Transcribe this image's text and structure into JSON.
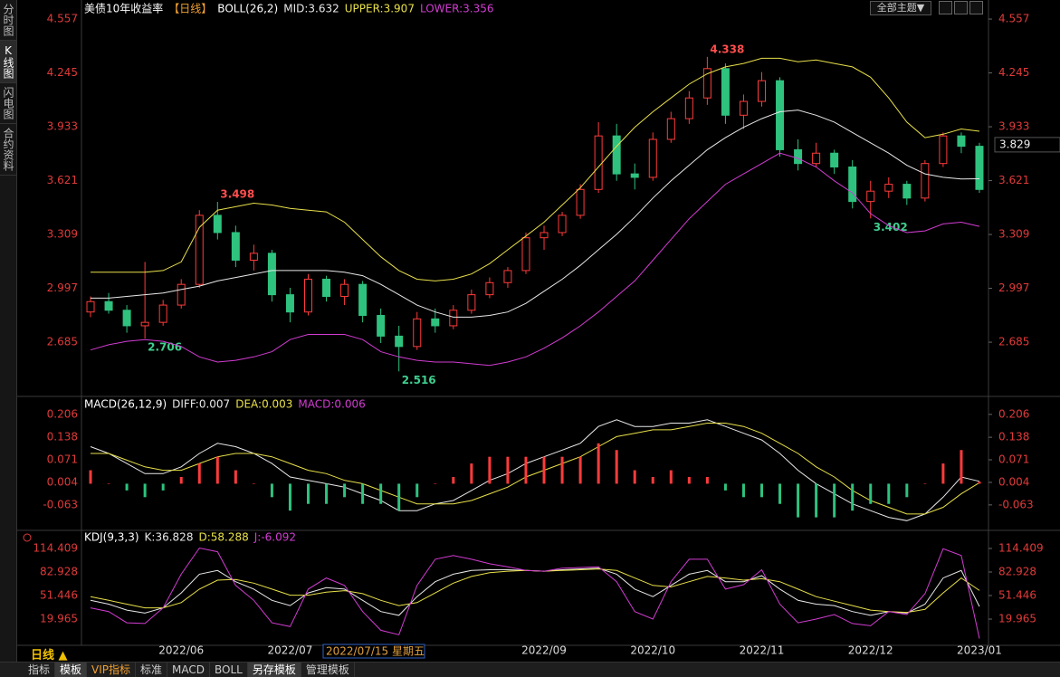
{
  "toolbar": {
    "theme_menu": "全部主题▼"
  },
  "sidebar": [
    "分时图",
    "K线图",
    "闪电图",
    "合约资料"
  ],
  "chart_data": [
    {
      "type": "candlestick",
      "title": "美债10年收益率",
      "period": "【日线】",
      "indicator": "BOLL(26,2)",
      "categories": [
        null,
        null,
        null,
        null,
        null,
        "2022/06",
        null,
        null,
        null,
        null,
        null,
        "2022/07",
        null,
        null,
        null,
        null,
        null,
        null,
        null,
        null,
        null,
        null,
        null,
        null,
        null,
        "2022/09",
        null,
        null,
        null,
        null,
        null,
        "2022/10",
        null,
        null,
        null,
        null,
        null,
        "2022/11",
        null,
        null,
        null,
        null,
        null,
        "2022/12",
        null,
        null,
        null,
        null,
        null,
        "2023/01"
      ],
      "open": [
        2.86,
        2.92,
        2.87,
        2.78,
        2.8,
        2.9,
        3.02,
        3.42,
        3.32,
        3.16,
        3.2,
        2.96,
        2.86,
        3.05,
        2.95,
        3.02,
        2.84,
        2.72,
        2.66,
        2.82,
        2.78,
        2.87,
        2.96,
        3.03,
        3.1,
        3.29,
        3.32,
        3.42,
        3.57,
        3.88,
        3.66,
        3.64,
        3.86,
        3.98,
        4.1,
        4.27,
        4.0,
        4.08,
        4.2,
        3.8,
        3.72,
        3.78,
        3.7,
        3.5,
        3.56,
        3.6,
        3.52,
        3.72,
        3.88,
        3.82
      ],
      "high": [
        2.95,
        2.97,
        2.9,
        3.15,
        2.93,
        3.05,
        3.45,
        3.498,
        3.36,
        3.25,
        3.22,
        3.0,
        3.08,
        3.07,
        3.05,
        3.04,
        2.88,
        2.78,
        2.86,
        2.88,
        2.9,
        2.99,
        3.06,
        3.12,
        3.32,
        3.36,
        3.44,
        3.6,
        3.96,
        3.95,
        3.72,
        3.9,
        4.02,
        4.14,
        4.338,
        4.3,
        4.12,
        4.25,
        4.22,
        3.86,
        3.84,
        3.8,
        3.74,
        3.62,
        3.64,
        3.62,
        3.74,
        3.9,
        3.9,
        3.84
      ],
      "low": [
        2.83,
        2.85,
        2.74,
        2.706,
        2.78,
        2.88,
        3.0,
        3.28,
        3.12,
        3.1,
        2.92,
        2.8,
        2.84,
        2.92,
        2.9,
        2.8,
        2.68,
        2.516,
        2.64,
        2.74,
        2.76,
        2.85,
        2.94,
        3.0,
        3.08,
        3.22,
        3.3,
        3.4,
        3.55,
        3.62,
        3.57,
        3.62,
        3.84,
        3.95,
        4.06,
        3.95,
        3.92,
        4.05,
        3.76,
        3.68,
        3.7,
        3.66,
        3.46,
        3.402,
        3.52,
        3.48,
        3.5,
        3.7,
        3.78,
        3.55
      ],
      "close": [
        2.92,
        2.87,
        2.78,
        2.8,
        2.9,
        3.02,
        3.42,
        3.32,
        3.16,
        3.2,
        2.96,
        2.86,
        3.05,
        2.95,
        3.02,
        2.84,
        2.72,
        2.66,
        2.82,
        2.78,
        2.87,
        2.96,
        3.03,
        3.1,
        3.29,
        3.32,
        3.42,
        3.57,
        3.88,
        3.66,
        3.64,
        3.86,
        3.98,
        4.1,
        4.27,
        4.0,
        4.08,
        4.2,
        3.8,
        3.72,
        3.78,
        3.7,
        3.5,
        3.56,
        3.6,
        3.52,
        3.72,
        3.88,
        3.82,
        3.57
      ],
      "up_color": "#ff3b3b",
      "down_color": "#2ec27e",
      "series": [
        {
          "name": "MID:3.632",
          "type": "line",
          "color": "#e8e8e8",
          "values": [
            2.94,
            2.94,
            2.95,
            2.96,
            2.97,
            2.99,
            3.01,
            3.04,
            3.06,
            3.08,
            3.1,
            3.1,
            3.1,
            3.1,
            3.09,
            3.07,
            3.02,
            2.96,
            2.9,
            2.86,
            2.83,
            2.83,
            2.84,
            2.86,
            2.91,
            2.98,
            3.05,
            3.13,
            3.22,
            3.31,
            3.41,
            3.52,
            3.62,
            3.71,
            3.8,
            3.87,
            3.93,
            3.98,
            4.02,
            4.03,
            4.0,
            3.96,
            3.9,
            3.84,
            3.78,
            3.71,
            3.66,
            3.64,
            3.63,
            3.632
          ]
        },
        {
          "name": "UPPER:3.907",
          "type": "line",
          "color": "#e8e04a",
          "values": [
            3.09,
            3.09,
            3.09,
            3.09,
            3.1,
            3.15,
            3.35,
            3.45,
            3.47,
            3.49,
            3.48,
            3.46,
            3.45,
            3.44,
            3.38,
            3.28,
            3.18,
            3.1,
            3.05,
            3.04,
            3.05,
            3.08,
            3.14,
            3.22,
            3.3,
            3.38,
            3.48,
            3.58,
            3.7,
            3.82,
            3.93,
            4.02,
            4.1,
            4.18,
            4.24,
            4.28,
            4.3,
            4.33,
            4.33,
            4.31,
            4.32,
            4.3,
            4.28,
            4.22,
            4.1,
            3.96,
            3.87,
            3.89,
            3.92,
            3.907
          ]
        },
        {
          "name": "LOWER:3.356",
          "type": "line",
          "color": "#d23cd2",
          "values": [
            2.64,
            2.67,
            2.69,
            2.7,
            2.69,
            2.66,
            2.6,
            2.57,
            2.58,
            2.6,
            2.63,
            2.7,
            2.73,
            2.73,
            2.73,
            2.7,
            2.63,
            2.6,
            2.58,
            2.57,
            2.57,
            2.56,
            2.55,
            2.57,
            2.6,
            2.65,
            2.71,
            2.78,
            2.86,
            2.95,
            3.04,
            3.16,
            3.28,
            3.4,
            3.5,
            3.6,
            3.66,
            3.72,
            3.78,
            3.75,
            3.7,
            3.62,
            3.55,
            3.43,
            3.36,
            3.32,
            3.33,
            3.37,
            3.38,
            3.356
          ]
        }
      ],
      "annotations": [
        4.338,
        3.498,
        2.706,
        2.516,
        3.402
      ],
      "ylim": [
        2.376,
        4.615
      ],
      "yticks": [
        4.557,
        4.245,
        3.933,
        3.621,
        3.309,
        2.997,
        2.685
      ]
    },
    {
      "type": "macd",
      "indicator": "MACD(26,12,9)",
      "series": [
        {
          "name": "DIFF:0.007",
          "type": "line",
          "color": "#e8e8e8",
          "values": [
            0.11,
            0.09,
            0.06,
            0.03,
            0.03,
            0.05,
            0.09,
            0.12,
            0.11,
            0.09,
            0.06,
            0.02,
            0.01,
            0.0,
            -0.01,
            -0.03,
            -0.05,
            -0.08,
            -0.08,
            -0.06,
            -0.05,
            -0.02,
            0.01,
            0.03,
            0.06,
            0.08,
            0.1,
            0.12,
            0.17,
            0.19,
            0.17,
            0.17,
            0.18,
            0.18,
            0.19,
            0.17,
            0.15,
            0.13,
            0.09,
            0.04,
            0.0,
            -0.03,
            -0.06,
            -0.08,
            -0.1,
            -0.11,
            -0.09,
            -0.04,
            0.02,
            0.007
          ]
        },
        {
          "name": "DEA:0.003",
          "type": "line",
          "color": "#e8e04a",
          "values": [
            0.09,
            0.09,
            0.07,
            0.05,
            0.04,
            0.04,
            0.06,
            0.08,
            0.09,
            0.09,
            0.08,
            0.06,
            0.04,
            0.03,
            0.01,
            0.0,
            -0.02,
            -0.04,
            -0.06,
            -0.06,
            -0.06,
            -0.05,
            -0.03,
            -0.01,
            0.02,
            0.04,
            0.06,
            0.08,
            0.11,
            0.14,
            0.15,
            0.16,
            0.16,
            0.17,
            0.18,
            0.18,
            0.17,
            0.15,
            0.12,
            0.09,
            0.05,
            0.02,
            -0.02,
            -0.05,
            -0.07,
            -0.09,
            -0.09,
            -0.07,
            -0.03,
            0.003
          ]
        },
        {
          "name": "MACD:0.006",
          "type": "bar",
          "color": "#d23cd2",
          "up_color": "#ff3b3b",
          "down_color": "#2ec27e",
          "values": [
            0.04,
            0.0,
            -0.02,
            -0.04,
            -0.02,
            0.02,
            0.06,
            0.08,
            0.04,
            0.0,
            -0.04,
            -0.08,
            -0.06,
            -0.06,
            -0.04,
            -0.06,
            -0.06,
            -0.08,
            -0.04,
            0.0,
            0.02,
            0.06,
            0.08,
            0.08,
            0.08,
            0.08,
            0.08,
            0.08,
            0.12,
            0.1,
            0.04,
            0.02,
            0.04,
            0.02,
            0.02,
            -0.02,
            -0.04,
            -0.04,
            -0.06,
            -0.1,
            -0.1,
            -0.1,
            -0.08,
            -0.06,
            -0.06,
            -0.04,
            0.0,
            0.06,
            0.1,
            0.006
          ]
        }
      ],
      "ylim": [
        -0.136,
        0.254
      ],
      "yticks": [
        0.206,
        0.138,
        0.071,
        0.004,
        -0.063
      ]
    },
    {
      "type": "kdj",
      "indicator": "KDJ(9,3,3)",
      "series": [
        {
          "name": "K:36.828",
          "type": "line",
          "color": "#e8e8e8",
          "values": [
            45,
            40,
            32,
            28,
            35,
            55,
            80,
            85,
            70,
            60,
            45,
            38,
            55,
            62,
            60,
            45,
            30,
            25,
            50,
            70,
            80,
            85,
            86,
            86,
            85,
            84,
            86,
            87,
            88,
            80,
            60,
            50,
            65,
            80,
            85,
            70,
            70,
            78,
            60,
            45,
            40,
            38,
            30,
            25,
            30,
            28,
            40,
            75,
            85,
            36.828
          ]
        },
        {
          "name": "D:58.288",
          "type": "line",
          "color": "#e8e04a",
          "values": [
            50,
            45,
            40,
            35,
            35,
            42,
            60,
            72,
            73,
            68,
            60,
            52,
            52,
            56,
            58,
            54,
            45,
            38,
            42,
            55,
            68,
            77,
            82,
            84,
            85,
            84,
            85,
            86,
            87,
            85,
            75,
            65,
            63,
            70,
            77,
            75,
            72,
            74,
            70,
            60,
            50,
            44,
            38,
            32,
            30,
            29,
            33,
            55,
            75,
            58.288
          ]
        },
        {
          "name": "J:-6.092",
          "type": "line",
          "color": "#d23cd2",
          "values": [
            35,
            30,
            15,
            14,
            35,
            80,
            115,
            110,
            65,
            45,
            15,
            10,
            60,
            75,
            65,
            30,
            5,
            -1,
            65,
            100,
            105,
            100,
            94,
            90,
            85,
            84,
            88,
            89,
            90,
            70,
            30,
            20,
            70,
            100,
            100,
            60,
            66,
            86,
            40,
            15,
            20,
            26,
            14,
            11,
            30,
            26,
            54,
            114,
            105,
            -6.092
          ]
        }
      ],
      "ylim": [
        -13.9,
        137.4
      ],
      "yticks": [
        114.409,
        82.928,
        51.446,
        19.965
      ]
    }
  ],
  "crosshair": {
    "date": "2022/07/15 星期五",
    "price": 3.829
  },
  "period": "日线 ▲",
  "tabs": [
    "指标",
    "模板",
    "VIP指标",
    "标准",
    "MACD",
    "BOLL",
    "另存模板",
    "管理模板"
  ]
}
